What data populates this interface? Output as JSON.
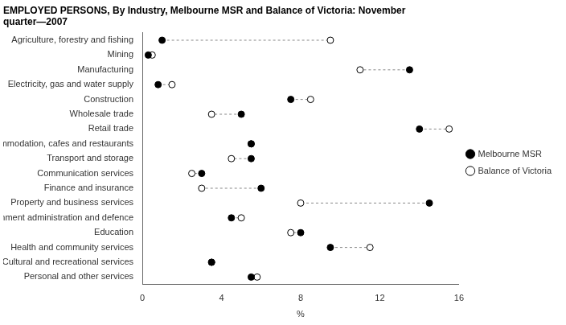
{
  "chart_data": {
    "type": "dot",
    "title": "EMPLOYED PERSONS, By Industry, Melbourne MSR and Balance of Victoria: November\nquarter—2007",
    "categories": [
      "Agriculture, forestry and fishing",
      "Mining",
      "Manufacturing",
      "Electricity, gas and water supply",
      "Construction",
      "Wholesale trade",
      "Retail trade",
      "Accommodation, cafes and restaurants",
      "Transport and storage",
      "Communication services",
      "Finance and insurance",
      "Property and business services",
      "Government administration and defence",
      "Education",
      "Health and community services",
      "Cultural and recreational services",
      "Personal and other services"
    ],
    "series": [
      {
        "name": "Melbourne MSR",
        "color": "#000000",
        "marker": "circle",
        "values": [
          1.0,
          0.3,
          13.5,
          0.8,
          7.5,
          5.0,
          14.0,
          5.5,
          5.5,
          3.0,
          6.0,
          14.5,
          4.5,
          8.0,
          9.5,
          3.5,
          5.5
        ]
      },
      {
        "name": "Balance of Victoria",
        "color": "#ffffff",
        "marker": "circle",
        "values": [
          9.5,
          0.5,
          11.0,
          1.5,
          8.5,
          3.5,
          15.5,
          5.5,
          4.5,
          2.5,
          3.0,
          8.0,
          5.0,
          7.5,
          11.5,
          3.5,
          5.8
        ]
      }
    ],
    "line_style": "dashed",
    "xlabel": "%",
    "xlim": [
      0,
      16
    ],
    "xticks": [
      0,
      4,
      8,
      12,
      16
    ],
    "grid": false,
    "legend": "right"
  }
}
